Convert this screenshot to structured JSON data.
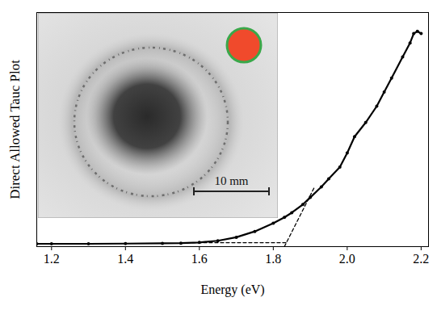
{
  "chart_data": {
    "type": "line",
    "x_label": "Energy (eV)",
    "y_label": "Direct Allowed Tauc Plot",
    "xlim": [
      1.16,
      2.22
    ],
    "ylim": [
      0,
      1
    ],
    "xticks": [
      1.2,
      1.4,
      1.6,
      1.8,
      {
        "value": 2,
        "label": "2.0"
      },
      2.2
    ],
    "tick_labels": "x",
    "grid": false,
    "series": [
      {
        "color": "#000000",
        "marker": "dot",
        "line_style": "solid",
        "x": [
          1.16,
          1.2,
          1.3,
          1.4,
          1.5,
          1.55,
          1.6,
          1.65,
          1.7,
          1.75,
          1.8,
          1.83,
          1.85,
          1.88,
          1.9,
          1.93,
          1.95,
          1.98,
          2.0,
          2.02,
          2.05,
          2.08,
          2.1,
          2.12,
          2.15,
          2.17,
          2.18,
          2.19,
          2.2
        ],
        "values": [
          0.012,
          0.012,
          0.012,
          0.013,
          0.014,
          0.015,
          0.018,
          0.025,
          0.04,
          0.065,
          0.1,
          0.125,
          0.145,
          0.18,
          0.21,
          0.255,
          0.29,
          0.34,
          0.4,
          0.47,
          0.53,
          0.6,
          0.66,
          0.72,
          0.81,
          0.87,
          0.91,
          0.92,
          0.91
        ]
      },
      {
        "color": "#000000",
        "marker": "none",
        "line_style": "dashed",
        "x": [
          1.55,
          1.84
        ],
        "values": [
          0.017,
          0.017
        ]
      },
      {
        "color": "#000000",
        "marker": "none",
        "line_style": "dashed",
        "x": [
          1.83,
          1.91
        ],
        "values": [
          0.0,
          0.25
        ]
      }
    ],
    "annotations": [
      {
        "text": "10 mm"
      }
    ]
  }
}
